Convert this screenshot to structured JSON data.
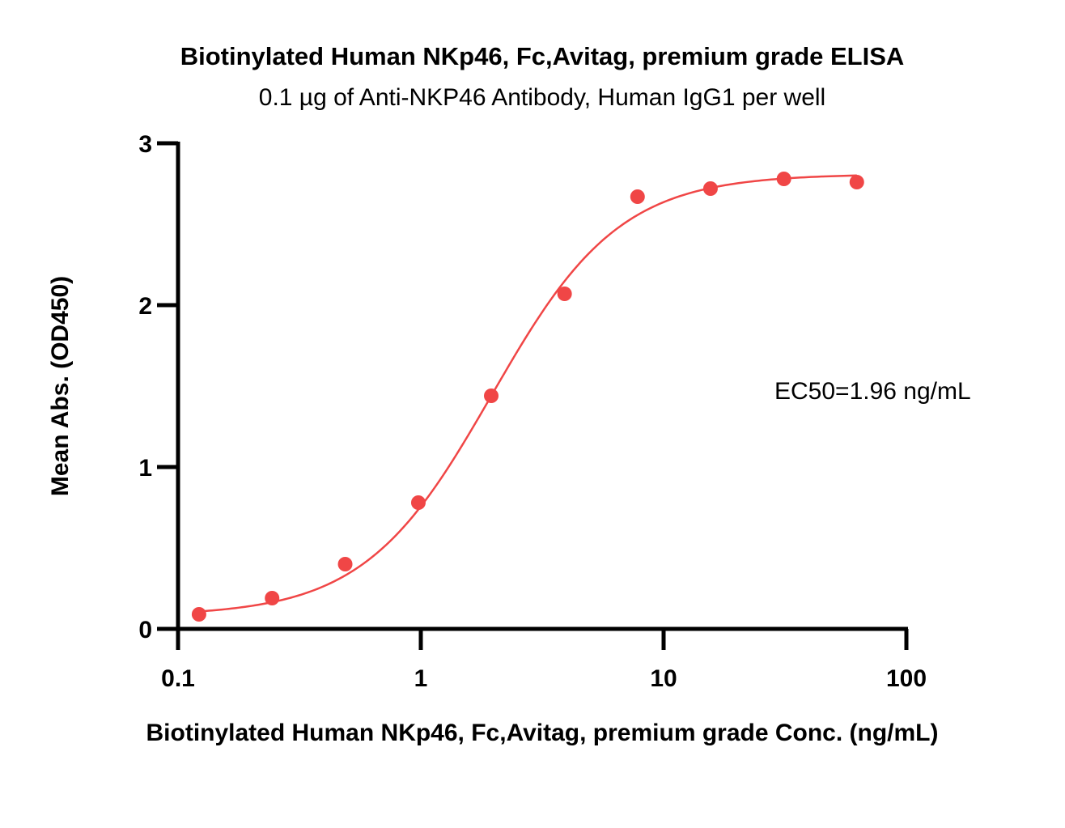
{
  "chart_data": {
    "type": "scatter",
    "title": "Biotinylated Human NKp46, Fc,Avitag, premium grade ELISA",
    "subtitle": "0.1 µg of Anti-NKP46 Antibody, Human IgG1 per well",
    "xlabel": "Biotinylated Human NKp46, Fc,Avitag, premium grade Conc. (ng/mL)",
    "ylabel": "Mean Abs. (OD450)",
    "x_scale": "log",
    "xlim": [
      0.1,
      100
    ],
    "ylim": [
      0,
      3
    ],
    "x_ticks": [
      0.1,
      1,
      10,
      100
    ],
    "x_tick_labels": [
      "0.1",
      "1",
      "10",
      "100"
    ],
    "y_ticks": [
      0,
      1,
      2,
      3
    ],
    "y_tick_labels": [
      "0",
      "1",
      "2",
      "3"
    ],
    "grid": false,
    "color": "#f04646",
    "series": [
      {
        "x": [
          0.122,
          0.244,
          0.488,
          0.977,
          1.95,
          3.91,
          7.81,
          15.6,
          31.3,
          62.5
        ],
        "y": [
          0.09,
          0.19,
          0.4,
          0.78,
          1.44,
          2.07,
          2.67,
          2.72,
          2.78,
          2.76
        ]
      }
    ],
    "fit_curve": {
      "model": "4PL",
      "bottom": 0.08,
      "top": 2.81,
      "ec50": 1.96,
      "hill": 1.65
    },
    "annotation": "EC50=1.96 ng/mL"
  }
}
